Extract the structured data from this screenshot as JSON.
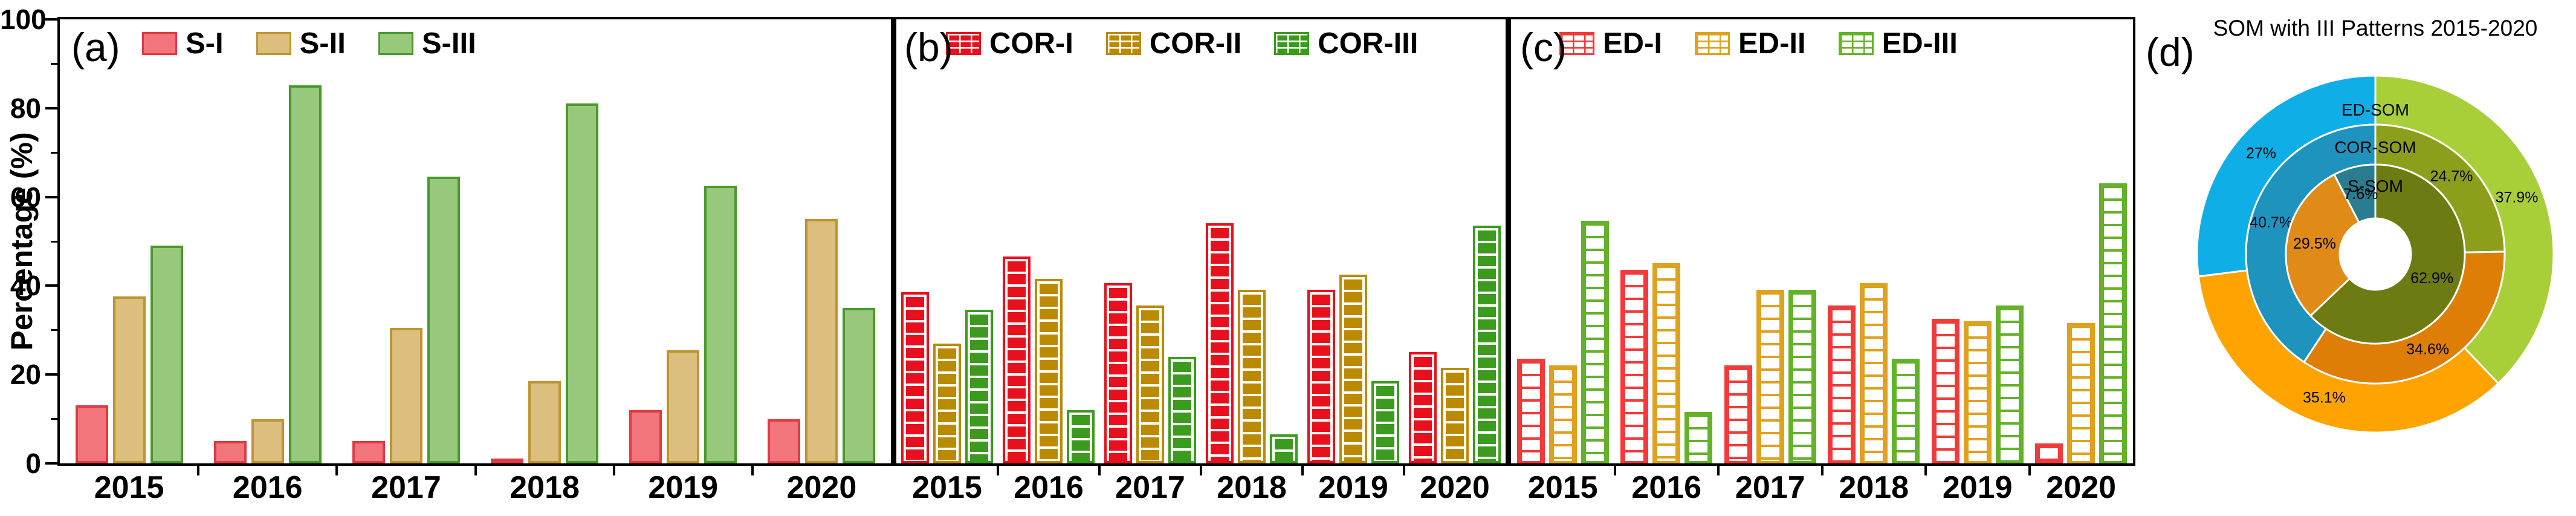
{
  "figure": {
    "ylabel": "Percentage (%)",
    "yticks": [
      "0",
      "20",
      "40",
      "60",
      "80",
      "100"
    ],
    "years": [
      "2015",
      "2016",
      "2017",
      "2018",
      "2019",
      "2020"
    ],
    "panel_letters": [
      "(a)",
      "(b)",
      "(c)",
      "(d)"
    ]
  },
  "chart_data": [
    {
      "type": "bar",
      "panel": "a",
      "pattern": "solid",
      "categories": [
        "2015",
        "2016",
        "2017",
        "2018",
        "2019",
        "2020"
      ],
      "ylabel": "Percentage (%)",
      "ylim": [
        0,
        100
      ],
      "legend_position": "top-left-inside",
      "series": [
        {
          "name": "S-I",
          "edge": "#E03A44",
          "fill": "#F2757B",
          "values": [
            13,
            5,
            5,
            0.5,
            12,
            10
          ]
        },
        {
          "name": "S-II",
          "edge": "#BE9530",
          "fill": "#DCBE7E",
          "values": [
            37.5,
            10,
            30.5,
            18.5,
            25.5,
            55
          ]
        },
        {
          "name": "S-III",
          "edge": "#4A9A2A",
          "fill": "#97C87C",
          "values": [
            49,
            85,
            64.5,
            81,
            62.5,
            35
          ]
        }
      ]
    },
    {
      "type": "bar",
      "panel": "b",
      "pattern": "brick",
      "categories": [
        "2015",
        "2016",
        "2017",
        "2018",
        "2019",
        "2020"
      ],
      "ylim": [
        0,
        100
      ],
      "legend_position": "top-left-inside",
      "series": [
        {
          "name": "COR-I",
          "edge": "#E8101C",
          "fill": "#E8101C",
          "values": [
            38.5,
            46.5,
            40.5,
            54,
            39,
            25
          ]
        },
        {
          "name": "COR-II",
          "edge": "#BB8A00",
          "fill": "#BB8A00",
          "values": [
            27,
            41.5,
            35.5,
            39,
            42.5,
            21.5
          ]
        },
        {
          "name": "COR-III",
          "edge": "#3C9B1E",
          "fill": "#3C9B1E",
          "values": [
            34.5,
            12,
            24,
            6.5,
            18.5,
            53.5
          ]
        }
      ]
    },
    {
      "type": "bar",
      "panel": "c",
      "pattern": "brick-open",
      "categories": [
        "2015",
        "2016",
        "2017",
        "2018",
        "2019",
        "2020"
      ],
      "ylim": [
        0,
        100
      ],
      "legend_position": "top-left-inside",
      "series": [
        {
          "name": "ED-I",
          "edge": "#F23A3A",
          "fill": "#FFFFFF",
          "values": [
            23.5,
            43.5,
            22,
            35.5,
            32.5,
            4.5
          ]
        },
        {
          "name": "ED-II",
          "edge": "#DFA21E",
          "fill": "#FFFFFF",
          "values": [
            22,
            45,
            39,
            40.5,
            32,
            31.5
          ]
        },
        {
          "name": "ED-III",
          "edge": "#63B22A",
          "fill": "#FFFFFF",
          "values": [
            54.5,
            11.5,
            39,
            23.5,
            35.5,
            63
          ]
        }
      ]
    },
    {
      "type": "pie",
      "panel": "d",
      "title": "SOM with III Patterns 2015-2020",
      "style": "nested-donut",
      "rings": [
        {
          "name": "ED-SOM",
          "segments": [
            {
              "label": "37.9%",
              "value": 37.9,
              "color": "#A9CF38"
            },
            {
              "label": "35.1%",
              "value": 35.1,
              "color": "#FFA300"
            },
            {
              "label": "27%",
              "value": 27,
              "color": "#10AEE6"
            }
          ]
        },
        {
          "name": "COR-SOM",
          "segments": [
            {
              "label": "24.7%",
              "value": 24.7,
              "color": "#8C9E1A"
            },
            {
              "label": "34.6%",
              "value": 34.6,
              "color": "#DE7E06"
            },
            {
              "label": "40.7%",
              "value": 40.7,
              "color": "#1E93BE"
            }
          ]
        },
        {
          "name": "S-SOM",
          "segments": [
            {
              "label": "62.9%",
              "value": 62.9,
              "color": "#6E7A12"
            },
            {
              "label": "29.5%",
              "value": 29.5,
              "color": "#E08A18"
            },
            {
              "label": "7.6%",
              "value": 7.6,
              "color": "#2A7C90"
            }
          ]
        }
      ]
    }
  ]
}
